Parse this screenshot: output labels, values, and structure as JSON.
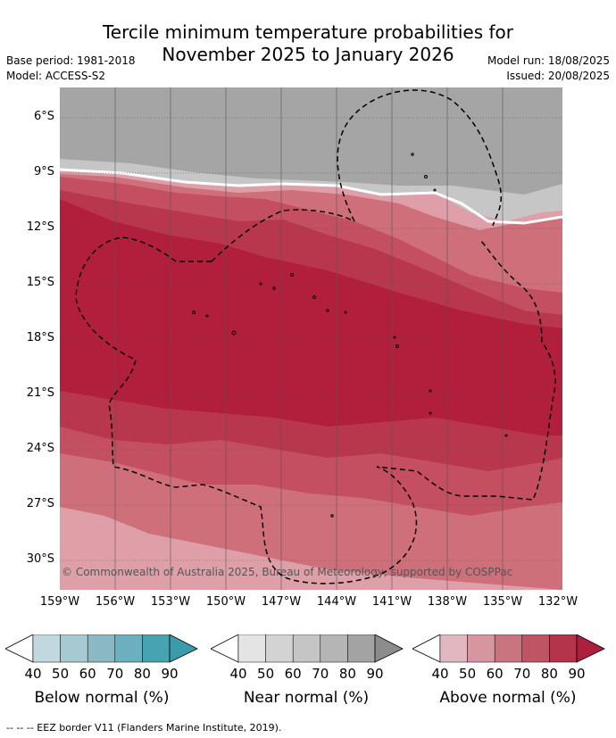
{
  "title_line1": "Tercile minimum temperature probabilities for",
  "title_line2": "November 2025 to January 2026",
  "base_period": "Base period: 1981-2018",
  "model": "Model: ACCESS-S2",
  "model_run": "Model run: 18/08/2025",
  "issued": "Issued: 20/08/2025",
  "lat_labels": [
    "6°S",
    "9°S",
    "12°S",
    "15°S",
    "18°S",
    "21°S",
    "24°S",
    "27°S",
    "30°S"
  ],
  "lon_labels": [
    "159°W",
    "156°W",
    "153°W",
    "150°W",
    "147°W",
    "144°W",
    "141°W",
    "138°W",
    "135°W",
    "132°W"
  ],
  "copyright": "© Commonwealth of Australia 2025, Bureau of Meteorology, supported by COSPPac",
  "colorbars": [
    {
      "title": "Below normal (%)",
      "ticks": [
        "40",
        "50",
        "60",
        "70",
        "80",
        "90"
      ],
      "colors": [
        "#ffffff",
        "#c2d8df",
        "#a7c9d1",
        "#8ab9c5",
        "#6cafbe",
        "#47a3b2"
      ]
    },
    {
      "title": "Near normal (%)",
      "ticks": [
        "40",
        "50",
        "60",
        "70",
        "80",
        "90"
      ],
      "colors": [
        "#ffffff",
        "#e4e4e4",
        "#d3d3d3",
        "#c5c5c5",
        "#b5b5b5",
        "#a3a3a3",
        "#8c8c8c"
      ]
    },
    {
      "title": "Above normal (%)",
      "ticks": [
        "40",
        "50",
        "60",
        "70",
        "80",
        "90"
      ],
      "colors": [
        "#ffffff",
        "#e2b7bf",
        "#d7969f",
        "#c97580",
        "#be5565",
        "#b3344b",
        "#ad1f3d"
      ]
    }
  ],
  "footnote": "--  --  -- EEZ border V11 (Flanders Marine Institute, 2019).",
  "map_colors": {
    "near_dark": "#a5a5a5",
    "near_light": "#c6c6c6",
    "above_50": "#df9fa9",
    "above_60": "#ce6f7a",
    "above_70": "#c44f60",
    "above_80": "#b9374d",
    "above_90": "#b11f3c"
  }
}
